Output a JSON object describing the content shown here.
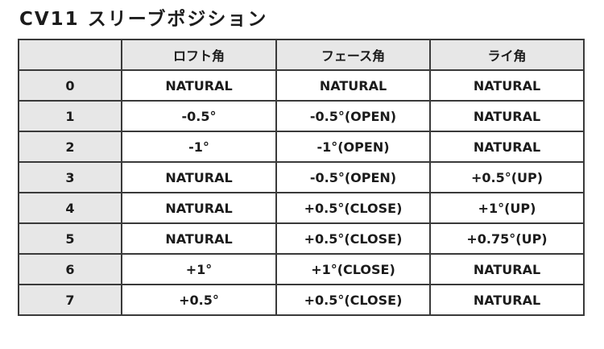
{
  "title": "CV11 スリーブポジション",
  "table": {
    "headers": {
      "position": "",
      "loft": "ロフト角",
      "face": "フェース角",
      "lie": "ライ角"
    },
    "rows": [
      {
        "position": "0",
        "loft": "NATURAL",
        "face": "NATURAL",
        "lie": "NATURAL"
      },
      {
        "position": "1",
        "loft": "-0.5°",
        "face": "-0.5°(OPEN)",
        "lie": "NATURAL"
      },
      {
        "position": "2",
        "loft": "-1°",
        "face": "-1°(OPEN)",
        "lie": "NATURAL"
      },
      {
        "position": "3",
        "loft": "NATURAL",
        "face": "-0.5°(OPEN)",
        "lie": "+0.5°(UP)"
      },
      {
        "position": "4",
        "loft": "NATURAL",
        "face": "+0.5°(CLOSE)",
        "lie": "+1°(UP)"
      },
      {
        "position": "5",
        "loft": "NATURAL",
        "face": "+0.5°(CLOSE)",
        "lie": "+0.75°(UP)"
      },
      {
        "position": "6",
        "loft": "+1°",
        "face": "+1°(CLOSE)",
        "lie": "NATURAL"
      },
      {
        "position": "7",
        "loft": "+0.5°",
        "face": "+0.5°(CLOSE)",
        "lie": "NATURAL"
      }
    ]
  },
  "colors": {
    "header_background": "#e7e7e7",
    "border": "#3a3a3a",
    "text": "#1b1b1b"
  }
}
